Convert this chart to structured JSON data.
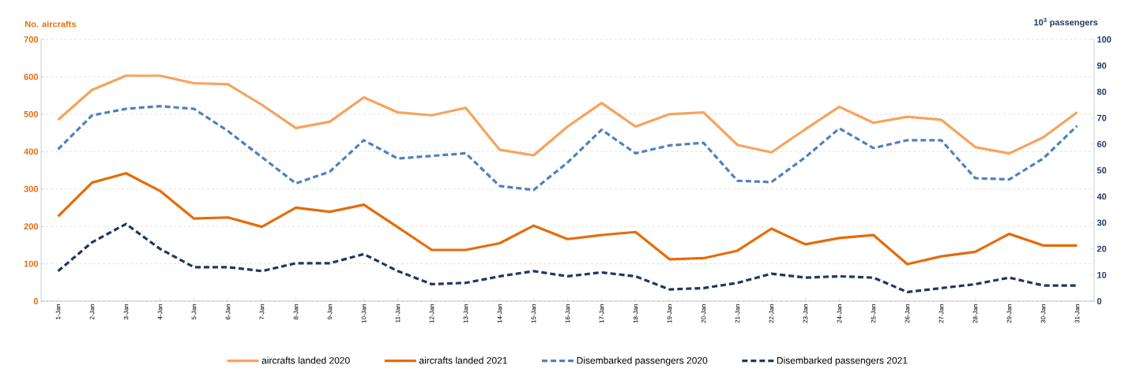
{
  "chart_data": {
    "type": "line",
    "ylabel": "No. aircrafts",
    "y2label": "10$^{3}$ passengers",
    "categories": [
      "1-Jan",
      "2-Jan",
      "3-Jan",
      "4-Jan",
      "5-Jan",
      "6-Jan",
      "7-Jan",
      "8-Jan",
      "9-Jan",
      "10-Jan",
      "11-Jan",
      "12-Jan",
      "13-Jan",
      "14-Jan",
      "15-Jan",
      "16-Jan",
      "17-Jan",
      "18-Jan",
      "19-Jan",
      "20-Jan",
      "21-Jan",
      "22-Jan",
      "23-Jan",
      "24-Jan",
      "25-Jan",
      "26-Jan",
      "27-Jan",
      "28-Jan",
      "29-Jan",
      "30-Jan",
      "31-Jan"
    ],
    "series": [
      {
        "name": "aircrafts landed 2020",
        "color": "#f7a35c",
        "line_style": "solid",
        "values": [
          485,
          565,
          603,
          603,
          583,
          580,
          525,
          463,
          480,
          545,
          505,
          497,
          517,
          405,
          390,
          467,
          530,
          467,
          500,
          505,
          418,
          398,
          460,
          520,
          477,
          493,
          485,
          412,
          395,
          438,
          505
        ]
      },
      {
        "name": "aircrafts landed 2021",
        "color": "#e46c0a",
        "line_style": "solid",
        "values": [
          227,
          317,
          342,
          295,
          221,
          224,
          199,
          250,
          239,
          258,
          198,
          137,
          137,
          155,
          202,
          166,
          177,
          185,
          112,
          115,
          135,
          194,
          152,
          169,
          177,
          99,
          120,
          132,
          180,
          149,
          149
        ]
      },
      {
        "name": "Disembarked passengers 2020",
        "color": "#4f81bd",
        "line_style": "dashed",
        "axis": "y2",
        "values": [
          58,
          71,
          73.5,
          74.5,
          73.5,
          65,
          55,
          45,
          49.5,
          61.5,
          54.5,
          55.5,
          56.5,
          44,
          42.5,
          53,
          65.5,
          56.5,
          59.5,
          60.5,
          46,
          45.5,
          55,
          66,
          58.5,
          61.5,
          61.5,
          47,
          46.5,
          54.5,
          67
        ]
      },
      {
        "name": "Disembarked passengers 2021",
        "color": "#1f3864",
        "line_style": "dashed",
        "axis": "y2",
        "values": [
          11.5,
          22.5,
          29.5,
          20,
          13,
          13,
          11.5,
          14.5,
          14.5,
          18,
          11.5,
          6.5,
          7,
          9.5,
          11.5,
          9.5,
          11,
          9.5,
          4.5,
          5,
          7,
          10.5,
          9,
          9.5,
          9,
          3.5,
          5,
          6.5,
          9,
          6,
          6
        ]
      }
    ],
    "ylim": [
      0,
      700
    ],
    "yticks": [
      0,
      100,
      200,
      300,
      400,
      500,
      600,
      700
    ],
    "y2lim": [
      0,
      100
    ],
    "y2ticks": [
      0,
      10,
      20,
      30,
      40,
      50,
      60,
      70,
      80,
      90,
      100
    ],
    "grid": "y",
    "legend": "bottom",
    "marker": "none"
  }
}
